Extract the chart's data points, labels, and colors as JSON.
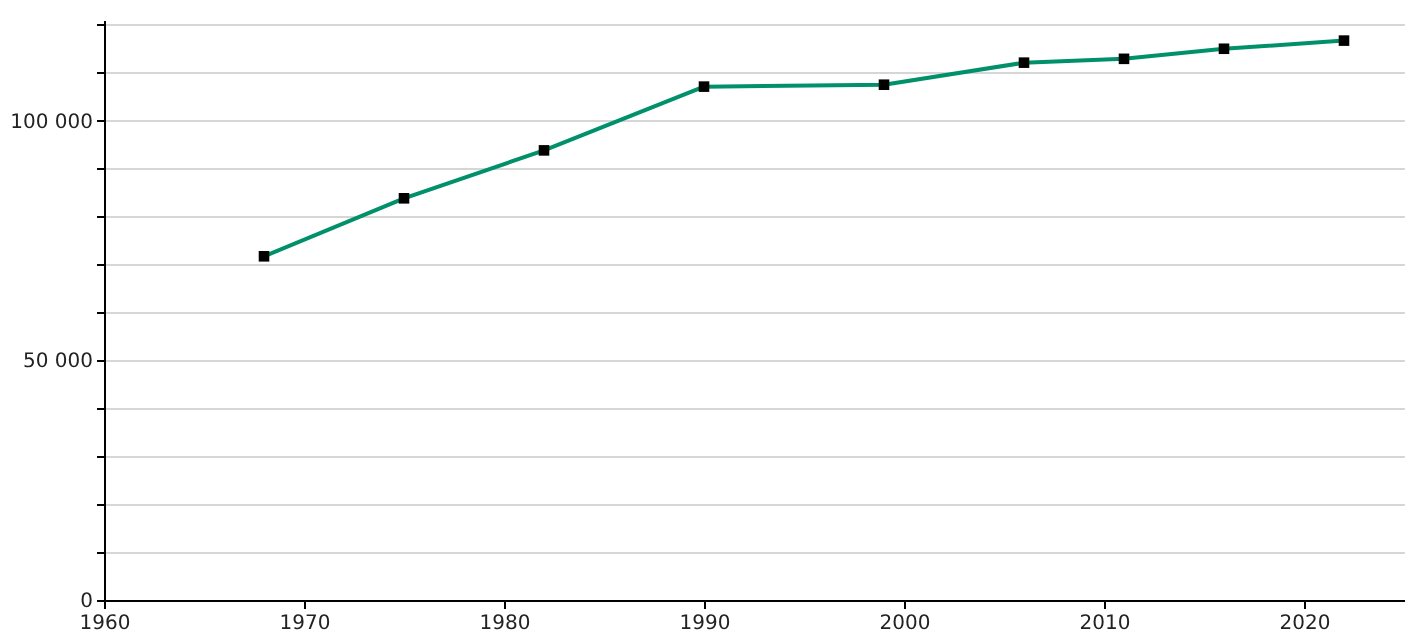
{
  "chart_data": {
    "type": "line",
    "x": [
      1968,
      1975,
      1982,
      1990,
      1999,
      2006,
      2011,
      2016,
      2022
    ],
    "series": [
      {
        "color": "#00906a",
        "values": [
          71700,
          83800,
          93800,
          107100,
          107500,
          112100,
          112900,
          115000,
          116700
        ]
      }
    ],
    "xlim": [
      1960,
      2025
    ],
    "xticks": [
      1960,
      1970,
      1980,
      1990,
      2000,
      2010,
      2020
    ],
    "ylim": [
      0,
      121000
    ],
    "yticks": [
      {
        "value": 0,
        "label": "0"
      },
      {
        "value": 10000,
        "label": null
      },
      {
        "value": 20000,
        "label": null
      },
      {
        "value": 30000,
        "label": null
      },
      {
        "value": 40000,
        "label": null
      },
      {
        "value": 50000,
        "label": "50 000"
      },
      {
        "value": 60000,
        "label": null
      },
      {
        "value": 70000,
        "label": null
      },
      {
        "value": 80000,
        "label": null
      },
      {
        "value": 90000,
        "label": null
      },
      {
        "value": 100000,
        "label": "100 000"
      },
      {
        "value": 110000,
        "label": null
      },
      {
        "value": 120000,
        "label": null
      }
    ],
    "grid": "y",
    "marker": "square",
    "line_style": "solid"
  }
}
